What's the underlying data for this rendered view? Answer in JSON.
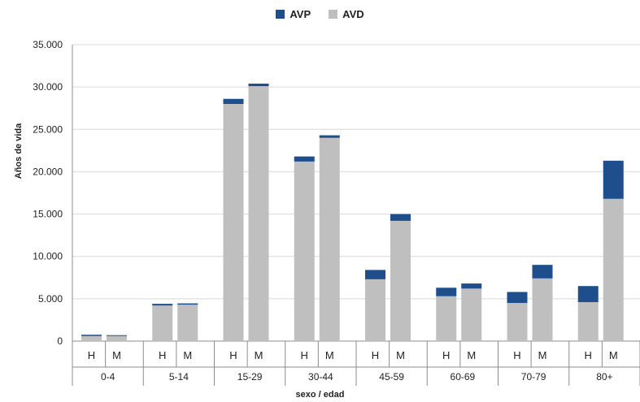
{
  "chart_data": {
    "type": "bar",
    "stacked": true,
    "ylabel": "Años de vida",
    "xlabel": "sexo / edad",
    "ylim": [
      0,
      35000
    ],
    "yticks": [
      "0",
      "5.000",
      "10.000",
      "15.000",
      "20.000",
      "25.000",
      "30.000",
      "35.000"
    ],
    "ytick_values": [
      0,
      5000,
      10000,
      15000,
      20000,
      25000,
      30000,
      35000
    ],
    "grid": true,
    "legend_position": "top-center",
    "groups": [
      "0-4",
      "5-14",
      "15-29",
      "30-44",
      "45-59",
      "60-69",
      "70-79",
      "80+"
    ],
    "subcategories": [
      "H",
      "M"
    ],
    "series": [
      {
        "name": "AVD",
        "color": "#bfbfbf",
        "values": [
          600,
          600,
          4200,
          4300,
          28000,
          30100,
          21200,
          24000,
          7300,
          14200,
          5300,
          6200,
          4500,
          7400,
          4600,
          16800
        ]
      },
      {
        "name": "AVP",
        "color": "#1f4e8c",
        "values": [
          150,
          100,
          200,
          150,
          600,
          300,
          600,
          300,
          1100,
          800,
          1000,
          600,
          1300,
          1600,
          1900,
          4500
        ]
      }
    ]
  }
}
